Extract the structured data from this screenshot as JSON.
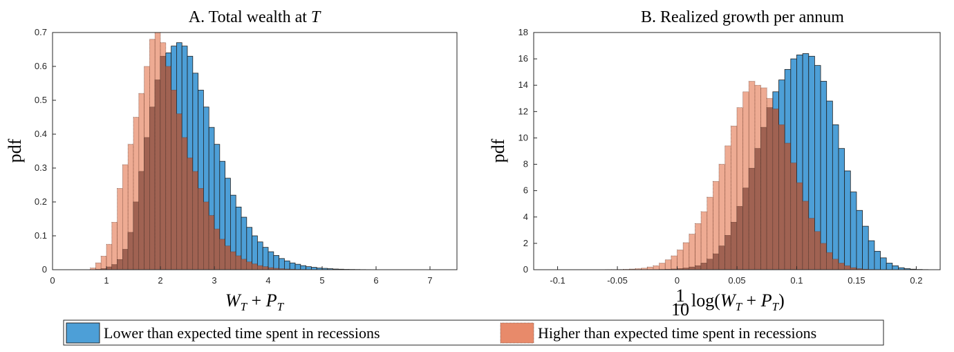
{
  "colors": {
    "lower": "#4d9fd7",
    "higher": "#e88a6a",
    "overlap": "#a06252"
  },
  "legend": {
    "lower_label": "Lower than expected time spent in recessions",
    "higher_label": "Higher than expected time spent in recessions"
  },
  "chart_data": [
    {
      "type": "bar",
      "title": "A. Total wealth at T",
      "xlabel": "W_T + P_T",
      "ylabel": "pdf",
      "xlim": [
        0,
        7.5
      ],
      "ylim": [
        0,
        0.7
      ],
      "xticks": [
        "0",
        "1",
        "2",
        "3",
        "4",
        "5",
        "6",
        "7"
      ],
      "yticks": [
        "0",
        "0.1",
        "0.2",
        "0.3",
        "0.4",
        "0.5",
        "0.6",
        "0.7"
      ],
      "bin_start": 0.0,
      "bin_width": 0.1,
      "series": [
        {
          "name": "Lower than expected time spent in recessions",
          "values": [
            0,
            0,
            0,
            0,
            0,
            0,
            0,
            0,
            0.001,
            0.003,
            0.008,
            0.015,
            0.03,
            0.06,
            0.11,
            0.2,
            0.29,
            0.39,
            0.48,
            0.56,
            0.63,
            0.64,
            0.66,
            0.67,
            0.66,
            0.63,
            0.58,
            0.53,
            0.48,
            0.42,
            0.37,
            0.32,
            0.27,
            0.22,
            0.185,
            0.155,
            0.125,
            0.1,
            0.082,
            0.066,
            0.053,
            0.042,
            0.033,
            0.026,
            0.02,
            0.016,
            0.012,
            0.009,
            0.007,
            0.005,
            0.004,
            0.003,
            0.002,
            0.0015,
            0.001,
            0.0008,
            0.0006,
            0.0004,
            0.0003,
            0.0002,
            0.0002,
            0.0001,
            0.0001,
            0,
            0,
            0,
            0,
            0,
            0,
            0,
            0,
            0,
            0,
            0,
            0
          ]
        },
        {
          "name": "Higher than expected time spent in recessions",
          "values": [
            0,
            0,
            0,
            0,
            0,
            0,
            0,
            0.005,
            0.02,
            0.04,
            0.075,
            0.14,
            0.24,
            0.31,
            0.37,
            0.45,
            0.52,
            0.6,
            0.68,
            0.7,
            0.67,
            0.6,
            0.53,
            0.46,
            0.39,
            0.33,
            0.29,
            0.24,
            0.2,
            0.16,
            0.12,
            0.09,
            0.07,
            0.053,
            0.041,
            0.031,
            0.023,
            0.017,
            0.012,
            0.009,
            0.006,
            0.004,
            0.003,
            0.002,
            0.0015,
            0.001,
            0.0007,
            0.0005,
            0.0003,
            0.0002,
            0.0001,
            0,
            0,
            0,
            0,
            0,
            0,
            0,
            0,
            0,
            0,
            0,
            0,
            0,
            0,
            0,
            0,
            0,
            0,
            0,
            0,
            0,
            0,
            0,
            0
          ]
        }
      ]
    },
    {
      "type": "bar",
      "title": "B. Realized growth per annum",
      "xlabel": "1/10 log(W_T + P_T)",
      "ylabel": "pdf",
      "xlim": [
        -0.12,
        0.22
      ],
      "ylim": [
        0,
        18
      ],
      "xticks": [
        "-0.1",
        "-0.05",
        "0",
        "0.05",
        "0.1",
        "0.15",
        "0.2"
      ],
      "yticks": [
        "0",
        "2",
        "4",
        "6",
        "8",
        "10",
        "12",
        "14",
        "16",
        "18"
      ],
      "bin_start": -0.1,
      "bin_width": 0.005,
      "series": [
        {
          "name": "Lower than expected time spent in recessions",
          "values": [
            0,
            0,
            0,
            0,
            0,
            0,
            0,
            0,
            0,
            0,
            0,
            0,
            0,
            0,
            0,
            0,
            0.01,
            0.02,
            0.03,
            0.05,
            0.08,
            0.12,
            0.2,
            0.3,
            0.5,
            0.8,
            1.2,
            1.8,
            2.6,
            3.6,
            4.8,
            6.2,
            7.7,
            9.2,
            10.8,
            12.3,
            13.5,
            14.4,
            15.2,
            16.0,
            16.3,
            16.4,
            16.2,
            15.5,
            14.3,
            12.8,
            11.0,
            9.2,
            7.5,
            5.9,
            4.5,
            3.3,
            2.2,
            1.4,
            0.9,
            0.5,
            0.3,
            0.15,
            0.08,
            0.04,
            0.02,
            0.01,
            0,
            0,
            0,
            0,
            0,
            0
          ]
        },
        {
          "name": "Higher than expected time spent in recessions",
          "values": [
            0,
            0,
            0,
            0,
            0,
            0,
            0,
            0,
            0.01,
            0.01,
            0.02,
            0.03,
            0.05,
            0.08,
            0.12,
            0.2,
            0.3,
            0.5,
            0.75,
            1.05,
            1.5,
            2.05,
            2.7,
            3.5,
            4.4,
            5.5,
            6.7,
            8.0,
            9.4,
            10.9,
            12.3,
            13.5,
            14.3,
            14.0,
            13.8,
            13.0,
            12.2,
            11.0,
            9.6,
            8.1,
            6.6,
            5.2,
            3.9,
            2.9,
            2.0,
            1.3,
            0.8,
            0.5,
            0.3,
            0.15,
            0.08,
            0.04,
            0.02,
            0.01,
            0,
            0,
            0,
            0,
            0,
            0,
            0,
            0,
            0,
            0,
            0,
            0,
            0,
            0
          ]
        }
      ]
    }
  ]
}
